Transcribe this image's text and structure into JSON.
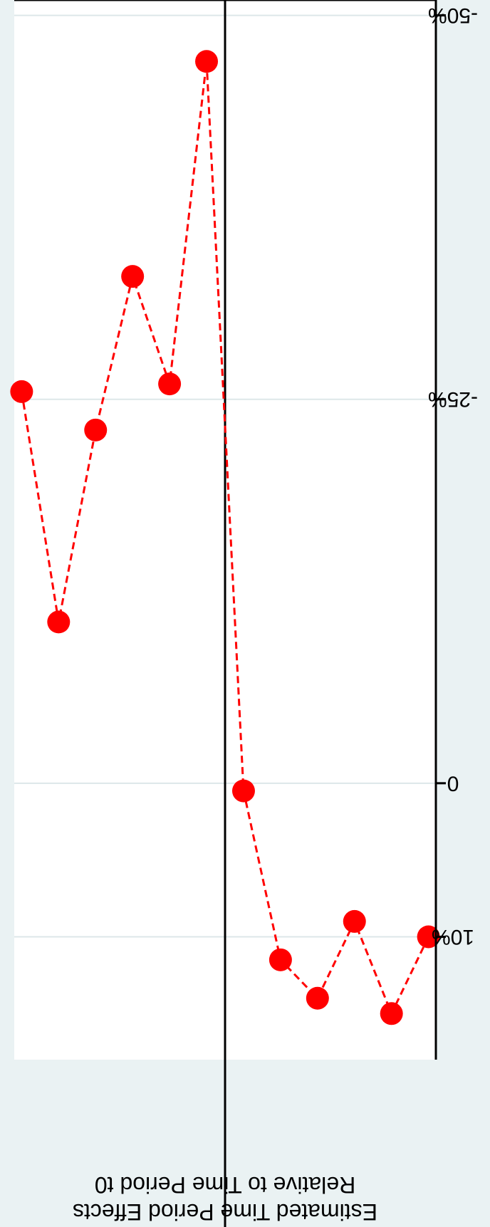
{
  "chart_data": {
    "type": "line",
    "orientation": "rotated-180",
    "xlabel": "",
    "ylabel": "Estimated Time Period Effects Relative to Time Period t0",
    "ylabel_lines": [
      "Estimated Time Period Effects",
      "Relative to Time Period t0"
    ],
    "x": [
      -5,
      -4,
      -3,
      -2,
      -1,
      0,
      1,
      2,
      3,
      4,
      5,
      6
    ],
    "y": [
      10,
      15,
      9,
      14,
      11.5,
      0.5,
      -47,
      -26,
      -33,
      -23,
      -10.5,
      -25.5
    ],
    "x_ticks": [
      "-5",
      "-4",
      "-3",
      "-2",
      "-1",
      "0",
      "1",
      "2",
      "3",
      "4",
      "5",
      "6"
    ],
    "y_ticks": [
      {
        "value": 10,
        "label": "10%"
      },
      {
        "value": 0,
        "label": "0"
      },
      {
        "value": -25,
        "label": "-25%"
      },
      {
        "value": -50,
        "label": "-50%"
      }
    ],
    "xlim": [
      -5.2,
      6.2
    ],
    "ylim": [
      -51,
      18
    ],
    "reference_line_x": 0.5,
    "grid": "vertical lines at y ticks",
    "colors": {
      "series": "#ff0000",
      "axis": "#000000",
      "grid": "#dde7e9",
      "plot_background": "#ffffff",
      "outer_background": "#eaf2f3"
    }
  }
}
